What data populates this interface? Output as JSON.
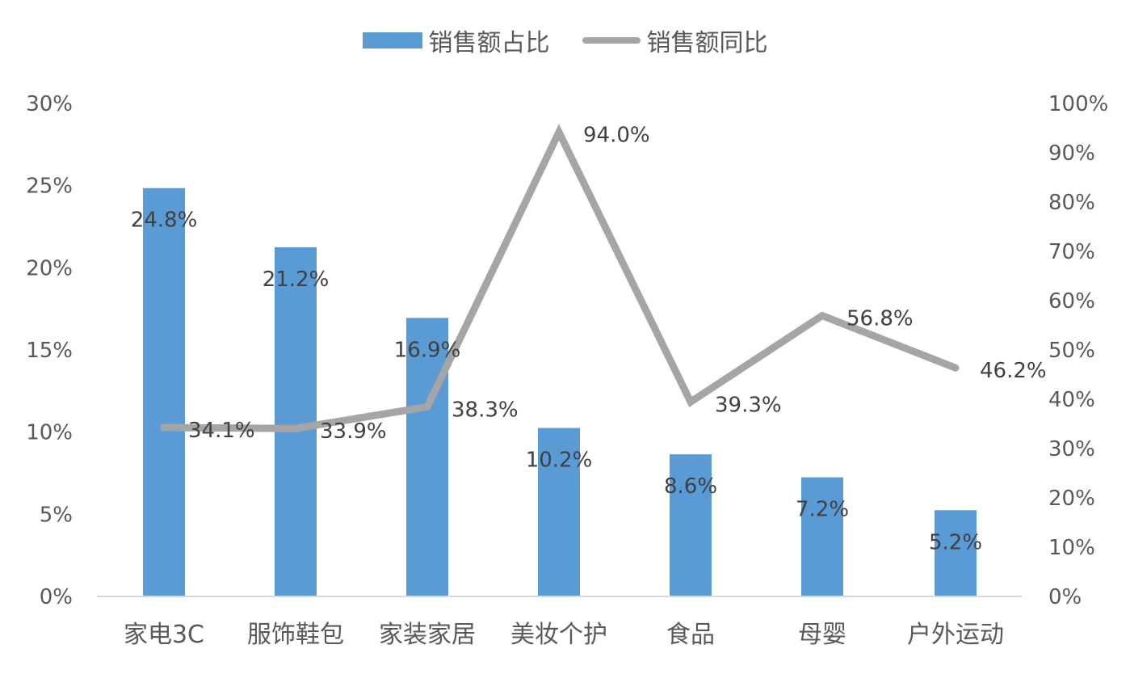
{
  "chart_data": {
    "type": "bar+line",
    "title": "",
    "categories": [
      "家电3C",
      "服饰鞋包",
      "家装家居",
      "美妆个护",
      "食品",
      "母婴",
      "户外运动"
    ],
    "series": [
      {
        "name": "销售额占比",
        "type": "bar",
        "axis": "left",
        "color": "#5b9bd5",
        "values": [
          24.8,
          21.2,
          16.9,
          10.2,
          8.6,
          7.2,
          5.2
        ],
        "labels": [
          "24.8%",
          "21.2%",
          "16.9%",
          "10.2%",
          "8.6%",
          "7.2%",
          "5.2%"
        ]
      },
      {
        "name": "销售额同比",
        "type": "line",
        "axis": "right",
        "color": "#a5a5a5",
        "values": [
          34.1,
          33.9,
          38.3,
          94.0,
          39.3,
          56.8,
          46.2
        ],
        "labels": [
          "34.1%",
          "33.9%",
          "38.3%",
          "94.0%",
          "39.3%",
          "56.8%",
          "46.2%"
        ]
      }
    ],
    "left_axis": {
      "ylim": [
        0,
        30
      ],
      "ticks": [
        "0%",
        "5%",
        "10%",
        "15%",
        "20%",
        "25%",
        "30%"
      ],
      "tick_values": [
        0,
        5,
        10,
        15,
        20,
        25,
        30
      ]
    },
    "right_axis": {
      "ylim": [
        0,
        100
      ],
      "ticks": [
        "0%",
        "10%",
        "20%",
        "30%",
        "40%",
        "50%",
        "60%",
        "70%",
        "80%",
        "90%",
        "100%"
      ],
      "tick_values": [
        0,
        10,
        20,
        30,
        40,
        50,
        60,
        70,
        80,
        90,
        100
      ]
    },
    "xlabel": "",
    "ylabel": "",
    "grid": false,
    "legend_position": "top"
  },
  "legend": {
    "bar_label": "销售额占比",
    "line_label": "销售额同比"
  }
}
